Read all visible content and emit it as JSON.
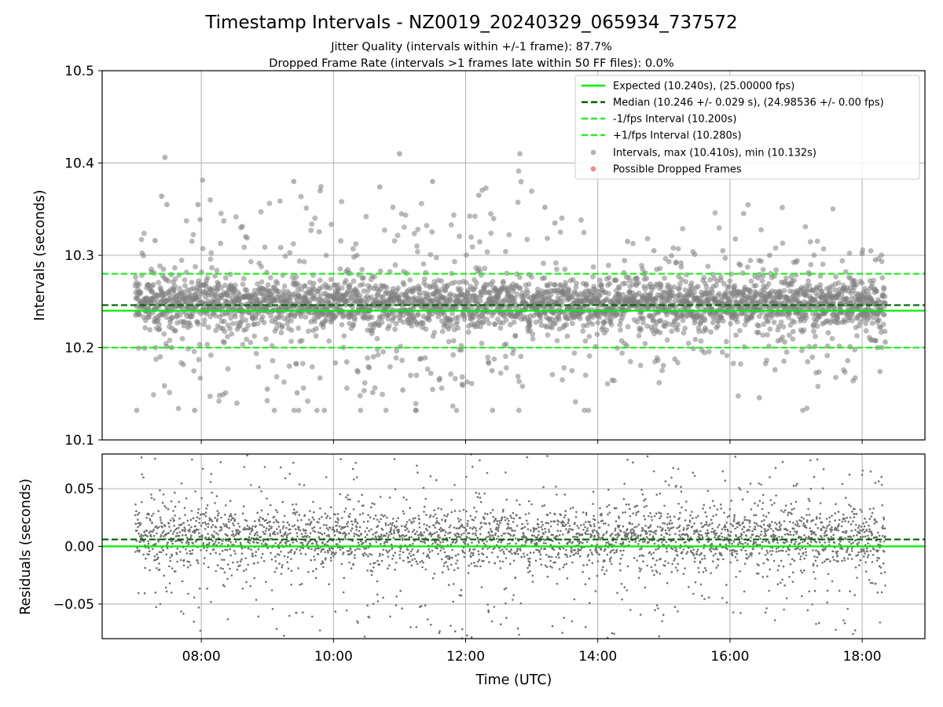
{
  "chart_data": {
    "title": "Timestamp Intervals - NZ0019_20240329_065934_737572",
    "subtitle_lines": [
      "Jitter Quality (intervals within +/-1 frame): 87.7%",
      "Dropped Frame Rate (intervals >1 frames late within 50 FF files): 0.0%"
    ],
    "xlabel": "Time (UTC)",
    "x_unit": "hours (UTC)",
    "xlim": [
      6.5,
      18.95
    ],
    "x_ticks": [
      8,
      10,
      12,
      14,
      16,
      18
    ],
    "x_tick_labels": [
      "08:00",
      "10:00",
      "12:00",
      "14:00",
      "16:00",
      "18:00"
    ],
    "grid": true,
    "charts": [
      {
        "id": "intervals",
        "type": "scatter",
        "ylabel": "Intervals (seconds)",
        "ylim": [
          10.1,
          10.5
        ],
        "y_ticks": [
          10.1,
          10.2,
          10.3,
          10.4,
          10.5
        ],
        "y_tick_labels": [
          "10.1",
          "10.2",
          "10.3",
          "10.4",
          "10.5"
        ],
        "reference_lines": [
          {
            "name": "Expected (10.240s), (25.00000 fps)",
            "y": 10.24,
            "style": "solid",
            "color": "#00ee00"
          },
          {
            "name": "Median (10.246 +/- 0.029 s), (24.98536 +/- 0.00 fps)",
            "y": 10.246,
            "style": "dashed",
            "color": "#006400"
          },
          {
            "name": "-1/fps Interval (10.200s)",
            "y": 10.2,
            "style": "dashed",
            "color": "#22ee22"
          },
          {
            "name": "+1/fps Interval (10.280s)",
            "y": 10.28,
            "style": "dashed",
            "color": "#22ee22"
          }
        ],
        "series": [
          {
            "name": "Intervals, max (10.410s), min (10.132s)",
            "color": "#808080",
            "x_range": [
              7.0,
              18.35
            ],
            "max": 10.41,
            "min": 10.132,
            "typical_band": [
              10.2,
              10.28
            ],
            "sample_points": [
              [
                7.15,
                10.25
              ],
              [
                7.3,
                10.316
              ],
              [
                7.4,
                10.364
              ],
              [
                7.45,
                10.406
              ],
              [
                7.48,
                10.355
              ],
              [
                7.55,
                10.2
              ],
              [
                7.9,
                10.132
              ],
              [
                7.95,
                10.355
              ],
              [
                8.6,
                10.33
              ],
              [
                9.0,
                10.155
              ],
              [
                9.4,
                10.38
              ],
              [
                9.45,
                10.151
              ],
              [
                9.8,
                10.37
              ],
              [
                10.7,
                10.374
              ],
              [
                11.0,
                10.41
              ],
              [
                11.05,
                10.154
              ],
              [
                11.5,
                10.38
              ],
              [
                11.6,
                10.165
              ],
              [
                12.2,
                10.365
              ],
              [
                12.4,
                10.175
              ],
              [
                13.2,
                10.352
              ],
              [
                13.35,
                10.335
              ],
              [
                14.45,
                10.315
              ],
              [
                14.85,
                10.305
              ],
              [
                15.0,
                10.24
              ],
              [
                16.6,
                10.3
              ],
              [
                17.3,
                10.25
              ],
              [
                18.0,
                10.302
              ],
              [
                18.2,
                10.295
              ],
              [
                18.35,
                10.206
              ]
            ]
          },
          {
            "name": "Possible Dropped Frames",
            "color": "#f08080",
            "points": []
          }
        ],
        "legend": {
          "position": "upper right"
        }
      },
      {
        "id": "residuals",
        "type": "scatter",
        "ylabel": "Residuals (seconds)",
        "ylim": [
          -0.08,
          0.08
        ],
        "y_ticks": [
          -0.05,
          0,
          0.05
        ],
        "y_tick_labels": [
          "−0.05",
          "0.00",
          "0.05"
        ],
        "reference_lines": [
          {
            "y": 0,
            "style": "solid",
            "color": "#00ee00"
          },
          {
            "y": 0.006,
            "style": "dashed",
            "color": "#006400"
          }
        ],
        "series": [
          {
            "color": "#707070",
            "x_range": [
              7.0,
              18.35
            ],
            "typical_band": [
              -0.04,
              0.04
            ]
          }
        ]
      }
    ]
  }
}
